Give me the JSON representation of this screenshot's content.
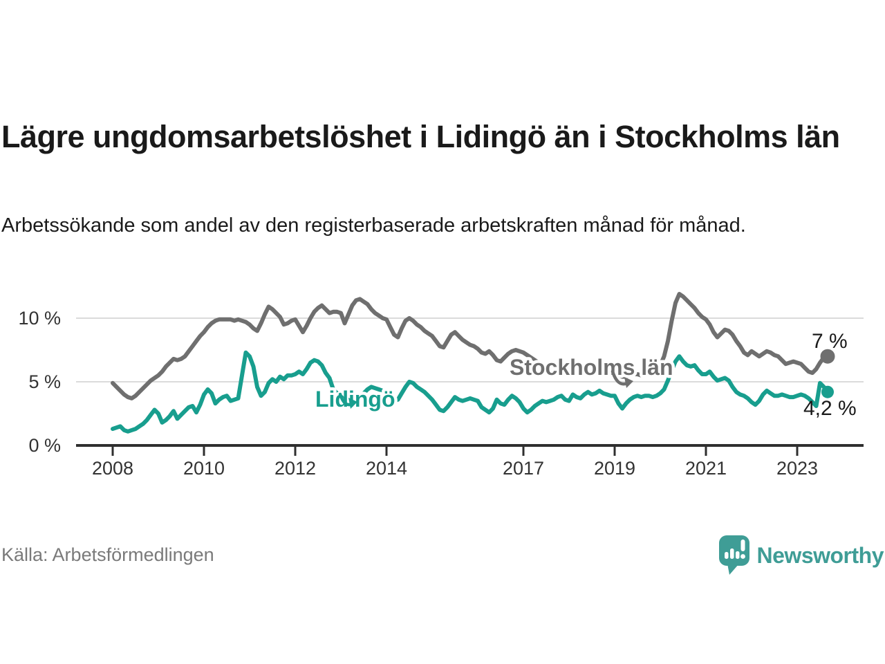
{
  "header": {
    "title": "Lägre ungdomsarbetslöshet i Lidingö än i Stockholms län",
    "subtitle": "Arbetssökande som andel av den registerbaserade arbetskraften månad för månad."
  },
  "footer": {
    "source": "Källa: Arbetsförmedlingen",
    "logo_text": "Newsworthy",
    "logo_color": "#3F9D96"
  },
  "chart_data": {
    "type": "line",
    "unit": "%",
    "frequency": "monthly",
    "x_start": "2008-01",
    "x_end": "2023-09",
    "ylim": [
      0,
      12
    ],
    "grid": "horizontal",
    "legend_position": "inline-labels",
    "x_ticks": [
      2008,
      2010,
      2012,
      2014,
      2017,
      2019,
      2021,
      2023
    ],
    "y_ticks": [
      {
        "value": 0,
        "label": "0 %"
      },
      {
        "value": 5,
        "label": "5 %"
      },
      {
        "value": 10,
        "label": "10 %"
      }
    ],
    "colors": {
      "axis": "#2f2f2f",
      "gridline": "#dbdbdb",
      "tick_label": "#333333",
      "value_label": "#1a1a1a"
    },
    "series": [
      {
        "name": "Stockholms län",
        "color": "#6F6F6F",
        "end_label": "7 %",
        "end_value": 7.0,
        "values": [
          4.9,
          4.6,
          4.3,
          4.0,
          3.8,
          3.7,
          3.9,
          4.2,
          4.5,
          4.8,
          5.1,
          5.3,
          5.5,
          5.8,
          6.2,
          6.5,
          6.8,
          6.7,
          6.8,
          7.0,
          7.4,
          7.8,
          8.2,
          8.6,
          8.9,
          9.3,
          9.6,
          9.8,
          9.9,
          9.9,
          9.9,
          9.9,
          9.8,
          9.9,
          9.8,
          9.7,
          9.5,
          9.2,
          9.0,
          9.6,
          10.3,
          10.9,
          10.7,
          10.4,
          10.1,
          9.5,
          9.6,
          9.8,
          9.9,
          9.4,
          8.9,
          9.4,
          10.0,
          10.5,
          10.8,
          11.0,
          10.7,
          10.4,
          10.5,
          10.5,
          10.4,
          9.6,
          10.3,
          11.0,
          11.4,
          11.5,
          11.3,
          11.1,
          10.7,
          10.4,
          10.2,
          10.0,
          9.9,
          9.3,
          8.7,
          8.5,
          9.2,
          9.8,
          10.0,
          9.8,
          9.5,
          9.3,
          9.0,
          8.8,
          8.6,
          8.2,
          7.8,
          7.7,
          8.2,
          8.7,
          8.9,
          8.6,
          8.3,
          8.1,
          7.9,
          7.8,
          7.6,
          7.3,
          7.2,
          7.4,
          7.1,
          6.7,
          6.6,
          6.9,
          7.2,
          7.4,
          7.5,
          7.4,
          7.3,
          7.1,
          6.9,
          6.7,
          6.5,
          6.4,
          6.3,
          6.2,
          6.1,
          6.1,
          6.2,
          6.1,
          6.1,
          6.0,
          5.9,
          5.8,
          5.9,
          6.0,
          5.9,
          5.8,
          5.7,
          5.7,
          5.6,
          5.6,
          5.6,
          5.5,
          5.4,
          5.4,
          5.5,
          5.6,
          5.6,
          5.5,
          5.5,
          5.6,
          5.7,
          5.9,
          6.3,
          7.0,
          8.2,
          9.8,
          11.2,
          11.9,
          11.7,
          11.4,
          11.1,
          10.8,
          10.4,
          10.1,
          9.9,
          9.5,
          8.9,
          8.5,
          8.8,
          9.1,
          9.0,
          8.7,
          8.2,
          7.8,
          7.3,
          7.1,
          7.4,
          7.2,
          7.0,
          7.2,
          7.4,
          7.3,
          7.1,
          7.0,
          6.7,
          6.4,
          6.5,
          6.6,
          6.5,
          6.4,
          6.1,
          5.8,
          5.7,
          6.0,
          6.5,
          6.9,
          7.0
        ]
      },
      {
        "name": "Lidingö",
        "color": "#189E8E",
        "end_label": "4,2 %",
        "end_value": 4.2,
        "values": [
          1.3,
          1.4,
          1.5,
          1.2,
          1.1,
          1.2,
          1.3,
          1.5,
          1.7,
          2.0,
          2.4,
          2.8,
          2.5,
          1.8,
          2.0,
          2.3,
          2.7,
          2.1,
          2.4,
          2.7,
          3.0,
          3.1,
          2.6,
          3.2,
          4.0,
          4.4,
          4.1,
          3.3,
          3.6,
          3.8,
          3.9,
          3.5,
          3.6,
          3.7,
          5.5,
          7.3,
          7.0,
          6.2,
          4.6,
          3.9,
          4.2,
          4.9,
          5.2,
          5.0,
          5.4,
          5.2,
          5.5,
          5.5,
          5.6,
          5.8,
          5.6,
          6.0,
          6.5,
          6.7,
          6.6,
          6.3,
          5.7,
          5.3,
          4.4,
          4.1,
          3.6,
          3.3,
          3.2,
          3.3,
          3.5,
          3.7,
          4.1,
          4.4,
          4.6,
          4.5,
          4.4,
          4.3,
          4.0,
          3.7,
          3.5,
          3.6,
          4.1,
          4.6,
          5.0,
          4.9,
          4.6,
          4.4,
          4.2,
          3.9,
          3.6,
          3.2,
          2.8,
          2.7,
          3.0,
          3.4,
          3.8,
          3.6,
          3.5,
          3.6,
          3.7,
          3.6,
          3.5,
          3.0,
          2.8,
          2.6,
          2.9,
          3.6,
          3.3,
          3.2,
          3.6,
          3.9,
          3.7,
          3.4,
          2.9,
          2.6,
          2.8,
          3.1,
          3.3,
          3.5,
          3.4,
          3.5,
          3.6,
          3.8,
          3.9,
          3.6,
          3.5,
          4.0,
          3.8,
          3.7,
          4.0,
          4.2,
          4.0,
          4.1,
          4.3,
          4.1,
          4.0,
          3.9,
          3.9,
          3.3,
          2.9,
          3.3,
          3.6,
          3.8,
          3.9,
          3.8,
          3.9,
          3.9,
          3.8,
          3.9,
          4.1,
          4.4,
          5.1,
          5.9,
          6.6,
          7.0,
          6.6,
          6.3,
          6.2,
          6.3,
          5.9,
          5.6,
          5.6,
          5.8,
          5.4,
          5.1,
          5.2,
          5.3,
          5.1,
          4.6,
          4.2,
          4.0,
          3.9,
          3.7,
          3.4,
          3.2,
          3.5,
          4.0,
          4.3,
          4.1,
          3.9,
          3.9,
          4.0,
          3.9,
          3.8,
          3.8,
          3.9,
          4.0,
          3.9,
          3.7,
          3.4,
          3.1,
          4.9,
          4.6,
          4.2
        ]
      }
    ]
  }
}
